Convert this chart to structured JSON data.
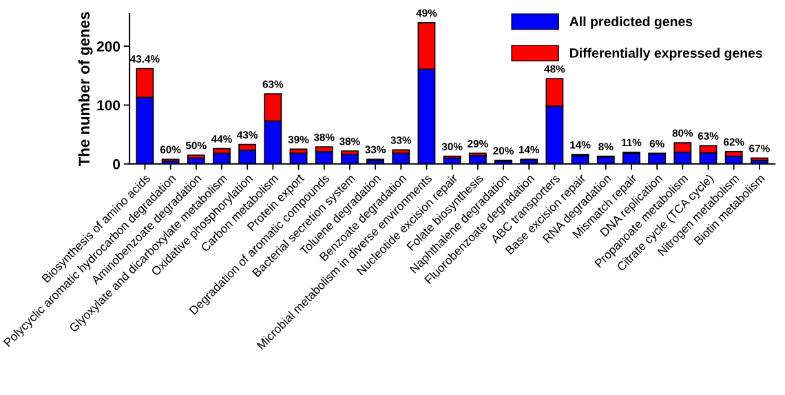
{
  "chart_data": {
    "type": "bar",
    "stacked": true,
    "ylabel": "The number of genes",
    "ylim": [
      0,
      255
    ],
    "yticks": [
      0,
      100,
      200
    ],
    "grid": false,
    "legend": "top right",
    "categories": [
      "Biosynthesis of amino acids",
      "Polycyclic aromatic hydrocarbon degradation",
      "Aminobenzoate degradation",
      "Glyoxylate and dicarboxylate metabolism",
      "Oxidative phosphorylation",
      "Carbon metabolism",
      "Protein export",
      "Degradation of aromatic compounds",
      "Bacterial secretion system",
      "Toluene degradation",
      "Benzoate degradation",
      "Microbial metabolism in diverse environments",
      "Nucleotide excision repair",
      "Folate biosynthesis",
      "Naphthalene degradation",
      "Fluorobenzoate degradation",
      "ABC transporters",
      "Base excision repair",
      "RNA degradation",
      "Mismatch repair",
      "DNA replication",
      "Propanoate metabolism",
      "Citrate cycle (TCA cycle)",
      "Nitrogen metabolism",
      "Biotin metabolism"
    ],
    "series": [
      {
        "name": "All predicted genes",
        "color": "#0000ff",
        "values": [
          113,
          5,
          10,
          18,
          23,
          73,
          18,
          21,
          16,
          6,
          18,
          161,
          10,
          14,
          5,
          7,
          98,
          14,
          12,
          18,
          17,
          20,
          19,
          13,
          6
        ]
      },
      {
        "name": "Differentially expressed genes",
        "color": "#ff0000",
        "values": [
          49,
          3,
          5,
          8,
          10,
          46,
          7,
          8,
          6,
          2,
          6,
          79,
          3,
          4,
          1,
          1,
          47,
          2,
          1,
          2,
          1,
          16,
          12,
          8,
          4
        ]
      }
    ],
    "annotations": [
      {
        "text": "43.4%",
        "x": "Biosynthesis of amino acids",
        "y": 162
      },
      {
        "text": "60%",
        "x": "Polycyclic aromatic hydrocarbon degradation",
        "y": 8
      },
      {
        "text": "50%",
        "x": "Aminobenzoate degradation",
        "y": 15
      },
      {
        "text": "44%",
        "x": "Glyoxylate and dicarboxylate metabolism",
        "y": 26
      },
      {
        "text": "43%",
        "x": "Oxidative phosphorylation",
        "y": 33
      },
      {
        "text": "63%",
        "x": "Carbon metabolism",
        "y": 119
      },
      {
        "text": "39%",
        "x": "Protein export",
        "y": 25
      },
      {
        "text": "38%",
        "x": "Degradation of aromatic compounds",
        "y": 29
      },
      {
        "text": "38%",
        "x": "Bacterial secretion system",
        "y": 22
      },
      {
        "text": "33%",
        "x": "Toluene degradation",
        "y": 8
      },
      {
        "text": "33%",
        "x": "Benzoate degradation",
        "y": 24
      },
      {
        "text": "49%",
        "x": "Microbial metabolism in diverse environments",
        "y": 240
      },
      {
        "text": "30%",
        "x": "Nucleotide excision repair",
        "y": 13
      },
      {
        "text": "29%",
        "x": "Folate biosynthesis",
        "y": 18
      },
      {
        "text": "20%",
        "x": "Naphthalene degradation",
        "y": 6
      },
      {
        "text": "14%",
        "x": "Fluorobenzoate degradation",
        "y": 8
      },
      {
        "text": "48%",
        "x": "ABC transporters",
        "y": 145
      },
      {
        "text": "14%",
        "x": "Base excision repair",
        "y": 16
      },
      {
        "text": "8%",
        "x": "RNA degradation",
        "y": 13
      },
      {
        "text": "11%",
        "x": "Mismatch repair",
        "y": 20
      },
      {
        "text": "6%",
        "x": "DNA replication",
        "y": 18
      },
      {
        "text": "80%",
        "x": "Propanoate metabolism",
        "y": 36
      },
      {
        "text": "63%",
        "x": "Citrate cycle (TCA cycle)",
        "y": 31
      },
      {
        "text": "62%",
        "x": "Nitrogen metabolism",
        "y": 21
      },
      {
        "text": "67%",
        "x": "Biotin metabolism",
        "y": 10
      }
    ]
  }
}
